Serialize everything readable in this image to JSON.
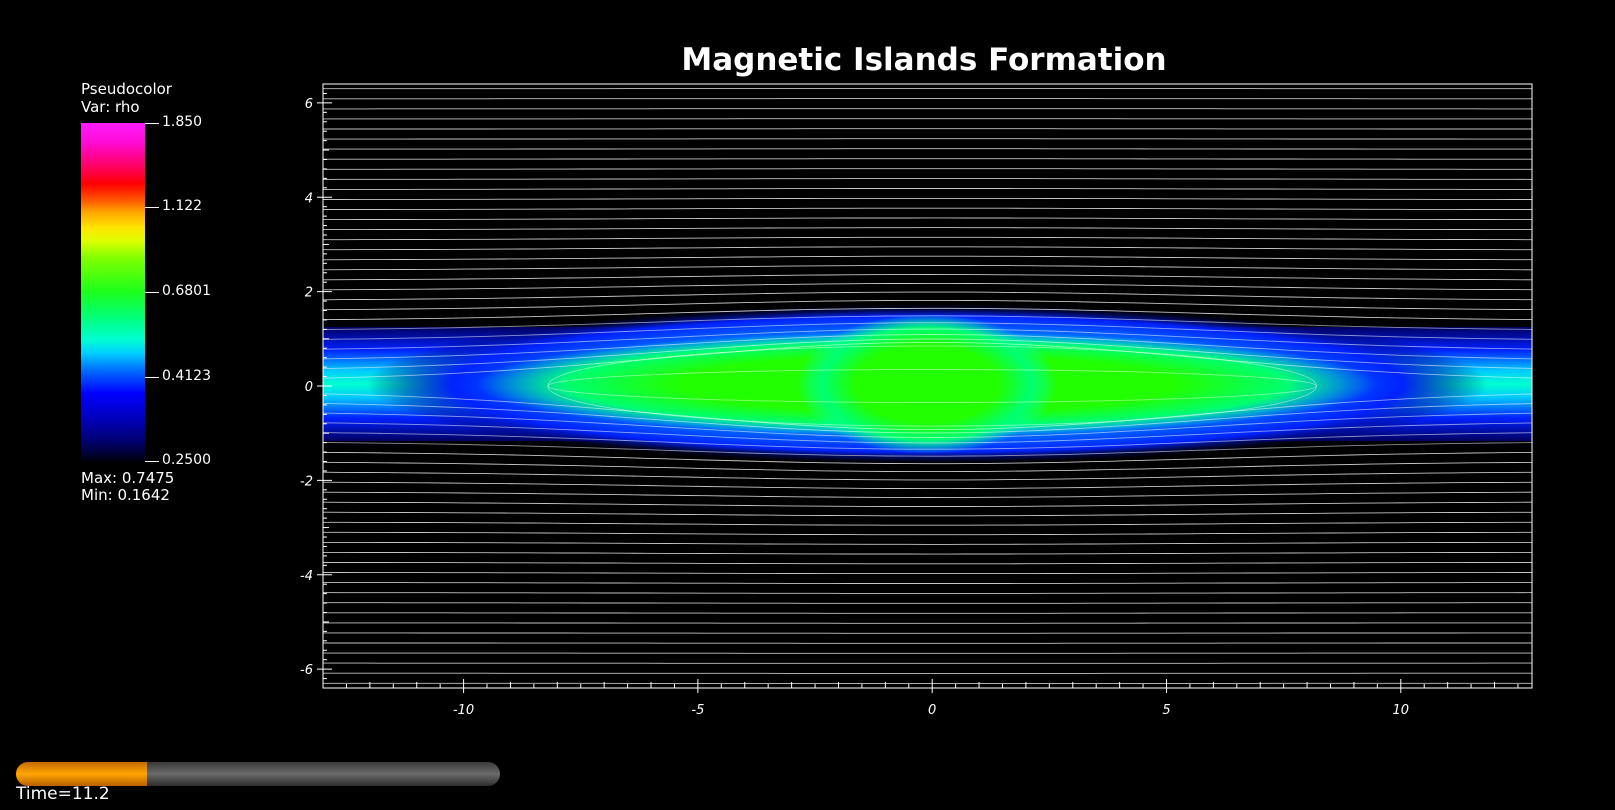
{
  "chart_data": {
    "type": "heatmap",
    "title": "Magnetic Islands Formation",
    "variable": "rho",
    "plot_type": "Pseudocolor",
    "xlim": [
      -13,
      12.8
    ],
    "ylim": [
      -6.4,
      6.4
    ],
    "x_ticks": [
      -10,
      -5,
      0,
      5,
      10
    ],
    "y_ticks": [
      6,
      4,
      2,
      0,
      -2,
      -4,
      -6
    ],
    "x_tick_labels": [
      "-10",
      "-5",
      "0",
      "5",
      "10"
    ],
    "y_tick_labels": [
      "6",
      "4",
      "2",
      "0",
      "-2",
      "-4",
      "-6"
    ],
    "colorbar": {
      "min_value": 0.25,
      "max_value": 1.85,
      "tick_values": [
        1.85,
        1.122,
        0.6801,
        0.4123,
        0.25
      ],
      "tick_labels": [
        "1.850",
        "1.122",
        "0.6801",
        "0.4123",
        "0.2500"
      ],
      "colors": [
        "#ff1cff",
        "#ff0000",
        "#ffe600",
        "#1cff1c",
        "#00ffd0",
        "#0000ff",
        "#000010"
      ]
    },
    "data_max": 0.7475,
    "data_min": 0.1642,
    "field_colors": {
      "core": "#22ff00",
      "edge": "#00e6ff",
      "sheath": "#0022ff",
      "background": "#000000"
    },
    "field_lines": "white contour lines"
  },
  "legend": {
    "type_label": "Pseudocolor",
    "var_label": "Var: rho",
    "max_text": "Max:  0.7475",
    "min_text": "Min:  0.1642"
  },
  "time": {
    "label": "Time=11.2",
    "progress": 0.27,
    "fill_color": "#ffa500",
    "track_color": "#555555"
  }
}
